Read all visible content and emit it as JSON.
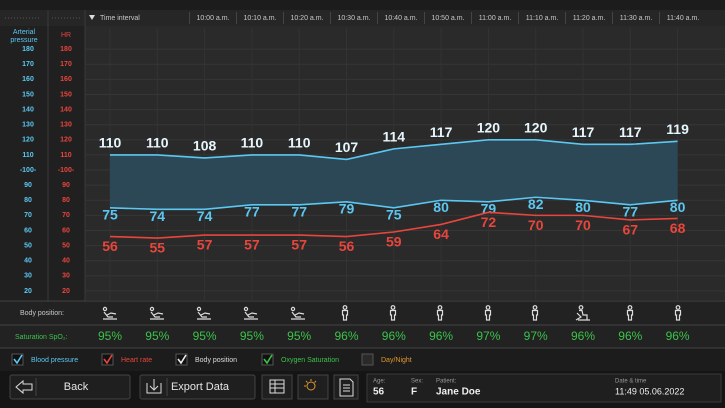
{
  "header": {
    "time_interval": "Time interval",
    "times": [
      "10:00 a.m.",
      "10:10 a.m.",
      "10:20 a.m.",
      "10:30 a.m.",
      "10:40 a.m.",
      "10:50 a.m.",
      "11:00 a.m.",
      "11:10 a.m.",
      "11:20 a.m.",
      "11:30 a.m.",
      "11:40 a.m."
    ]
  },
  "chart_data": {
    "type": "line",
    "ylabel": [
      "Arterial",
      "pressure"
    ],
    "y2label": "HR",
    "categories": [
      null,
      null,
      null,
      null,
      null,
      null,
      null,
      null,
      null,
      null,
      null,
      null,
      null
    ],
    "series": [
      {
        "color": "#5cc8f2",
        "values": [
          110,
          110,
          108,
          110,
          110,
          107,
          114,
          117,
          120,
          120,
          117,
          117,
          119
        ]
      },
      {
        "color": "#5cc8f2",
        "values": [
          75,
          74,
          74,
          77,
          77,
          79,
          75,
          80,
          79,
          82,
          80,
          77,
          80
        ]
      },
      {
        "color": "#e8463c",
        "axis": "y2",
        "values": [
          56,
          55,
          57,
          57,
          57,
          56,
          59,
          64,
          72,
          70,
          70,
          67,
          68
        ]
      }
    ],
    "area_color": "#2c4756",
    "ylim": [
      14,
      194
    ],
    "yticks": [
      180,
      170,
      160,
      150,
      140,
      130,
      120,
      110,
      {
        "value": 100,
        "label": "-100-"
      },
      90,
      80,
      70,
      60,
      50,
      40,
      30,
      20
    ],
    "y2lim": [
      14,
      194
    ],
    "y2ticks": [
      180,
      170,
      160,
      150,
      140,
      130,
      120,
      110,
      {
        "value": 100,
        "label": "-100-"
      },
      90,
      80,
      70,
      60,
      50,
      40,
      30,
      20
    ],
    "grid": true
  },
  "body_position": {
    "label": "Body position:"
  },
  "spo2": {
    "label": "Saturation SpO₂:",
    "values": [
      "95%",
      "95%",
      "95%",
      "95%",
      "95%",
      "96%",
      "96%",
      "96%",
      "97%",
      "97%",
      "96%",
      "96%",
      "96%"
    ]
  },
  "legend": [
    "Blood pressure",
    "Heart rate",
    "Body position",
    "Oxygen Saturation",
    "Day/Night"
  ],
  "buttons": {
    "back": "Back",
    "export": "Export Data"
  },
  "patient": {
    "age_label": "Age:",
    "age": "56",
    "sex_label": "Sex:",
    "sex": "F",
    "patient_label": "Patient:",
    "name": "Jane Doe",
    "date_label": "Date & time",
    "date": "11:49 05.06.2022"
  }
}
